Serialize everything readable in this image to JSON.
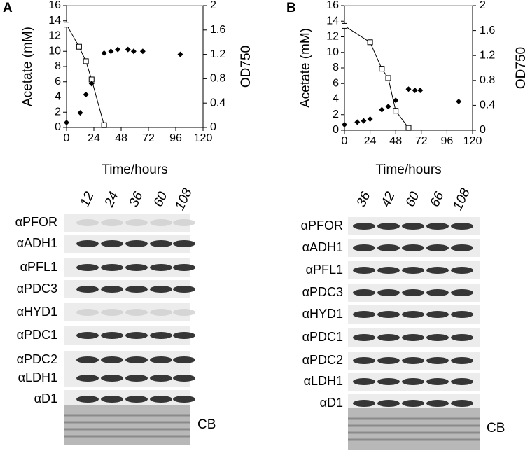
{
  "chart_data": [
    {
      "type": "line",
      "label": "A",
      "ylabel": "Acetate (mM)",
      "y2label": "OD750",
      "xlabel": "Time/hours",
      "xlim": [
        0,
        120
      ],
      "xticks": [
        0,
        24,
        48,
        72,
        96,
        120
      ],
      "ylim": [
        0,
        16
      ],
      "yticks": [
        0,
        2,
        4,
        6,
        8,
        10,
        12,
        14,
        16
      ],
      "y2lim": [
        0,
        2
      ],
      "y2ticks": [
        0,
        0.4,
        0.8,
        1.2,
        1.6,
        2
      ],
      "series": [
        {
          "color": "#000000",
          "marker": "open-square",
          "line": true,
          "x": [
            0,
            11,
            17,
            22,
            33
          ],
          "values": [
            13.5,
            10.6,
            8.7,
            6.3,
            0.3
          ]
        },
        {
          "color": "#000000",
          "marker": "diamond",
          "line": false,
          "axis": "y2",
          "x": [
            0,
            12,
            17,
            22,
            33,
            39,
            45,
            54,
            59,
            67,
            100
          ],
          "values": [
            0.08,
            0.24,
            0.54,
            0.72,
            1.22,
            1.25,
            1.28,
            1.28,
            1.25,
            1.25,
            1.2
          ]
        }
      ]
    },
    {
      "type": "line",
      "label": "B",
      "ylabel": "Acetate (mM)",
      "y2label": "OD750",
      "xlabel": "Time/hours",
      "xlim": [
        0,
        120
      ],
      "xticks": [
        0,
        24,
        48,
        72,
        96,
        120
      ],
      "ylim": [
        0,
        16
      ],
      "yticks": [
        0,
        2,
        4,
        6,
        8,
        10,
        12,
        14,
        16
      ],
      "y2lim": [
        0,
        2
      ],
      "y2ticks": [
        0,
        0.4,
        0.8,
        1.2,
        1.6,
        2
      ],
      "series": [
        {
          "color": "#000000",
          "marker": "open-square",
          "line": true,
          "x": [
            0,
            24,
            35,
            41,
            48,
            60
          ],
          "values": [
            13.4,
            11.3,
            7.9,
            6.7,
            2.5,
            0.3
          ]
        },
        {
          "color": "#000000",
          "marker": "diamond",
          "line": false,
          "axis": "y2",
          "x": [
            0,
            12,
            18,
            24,
            35,
            41,
            48,
            60,
            66,
            71,
            107
          ],
          "values": [
            0.09,
            0.13,
            0.15,
            0.18,
            0.33,
            0.38,
            0.48,
            0.66,
            0.64,
            0.64,
            0.46
          ]
        }
      ]
    }
  ],
  "blots": [
    {
      "lanes": [
        12,
        24,
        36,
        60,
        108
      ],
      "antibodies": [
        "αPFOR",
        "αADH1",
        "αPFL1",
        "αPDC3",
        "αHYD1",
        "αPDC1",
        "αPDC2",
        "αLDH1",
        "αD1"
      ],
      "stain": "CB"
    },
    {
      "lanes": [
        36,
        42,
        60,
        66,
        108
      ],
      "antibodies": [
        "αPFOR",
        "αADH1",
        "αPFL1",
        "αPDC3",
        "αHYD1",
        "αPDC1",
        "αPDC2",
        "αLDH1",
        "αD1"
      ],
      "stain": "CB"
    }
  ]
}
